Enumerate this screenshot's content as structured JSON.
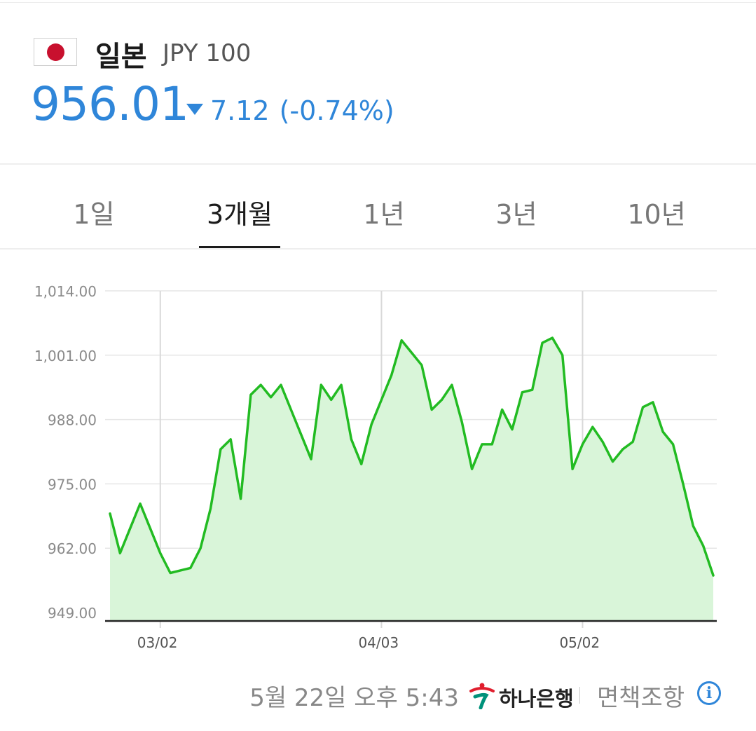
{
  "currency": {
    "country": "일본",
    "code": "JPY 100",
    "price": "956.01",
    "change": "7.12",
    "change_pct": "(-0.74%)",
    "direction": "down",
    "accent_color": "#2f86d9",
    "flag_icon": "japan-flag-icon"
  },
  "tabs": [
    {
      "label": "1일",
      "active": false
    },
    {
      "label": "3개월",
      "active": true
    },
    {
      "label": "1년",
      "active": false
    },
    {
      "label": "3년",
      "active": false
    },
    {
      "label": "10년",
      "active": false
    }
  ],
  "footer": {
    "timestamp": "5월 22일 오후 5:43",
    "bank_name": "하나은행",
    "disclaimer": "면책조항",
    "info_icon": "info-icon"
  },
  "chart_data": {
    "type": "area",
    "line_color": "#22bb22",
    "fill_color": "#d9f5d9",
    "ylim": [
      949,
      1014
    ],
    "yticks": [
      1014,
      1001,
      988,
      975,
      962,
      949
    ],
    "ytick_labels": [
      "1,014.00",
      "1,001.00",
      "988.00",
      "975.00",
      "962.00",
      "949.00"
    ],
    "xticks": [
      {
        "x": 5,
        "label": "03/02"
      },
      {
        "x": 27,
        "label": "04/03"
      },
      {
        "x": 47,
        "label": "05/02"
      }
    ],
    "grid": true,
    "series": [
      {
        "values": [
          969,
          961,
          966,
          971,
          966,
          961,
          957,
          957.5,
          958,
          962,
          970,
          982,
          984,
          972,
          993,
          995,
          992.5,
          995,
          990,
          985,
          980,
          995,
          992,
          995,
          984,
          979,
          987,
          992,
          997,
          1004,
          1001.5,
          999,
          990,
          992,
          995,
          987.5,
          978,
          983,
          983,
          990,
          986,
          993.5,
          994,
          1003.5,
          1004.5,
          1001,
          978,
          983,
          986.5,
          983.5,
          979.5,
          982,
          983.5,
          990.5,
          991.5,
          985.5,
          983,
          975,
          966.5,
          962.5,
          956.5
        ]
      }
    ]
  }
}
